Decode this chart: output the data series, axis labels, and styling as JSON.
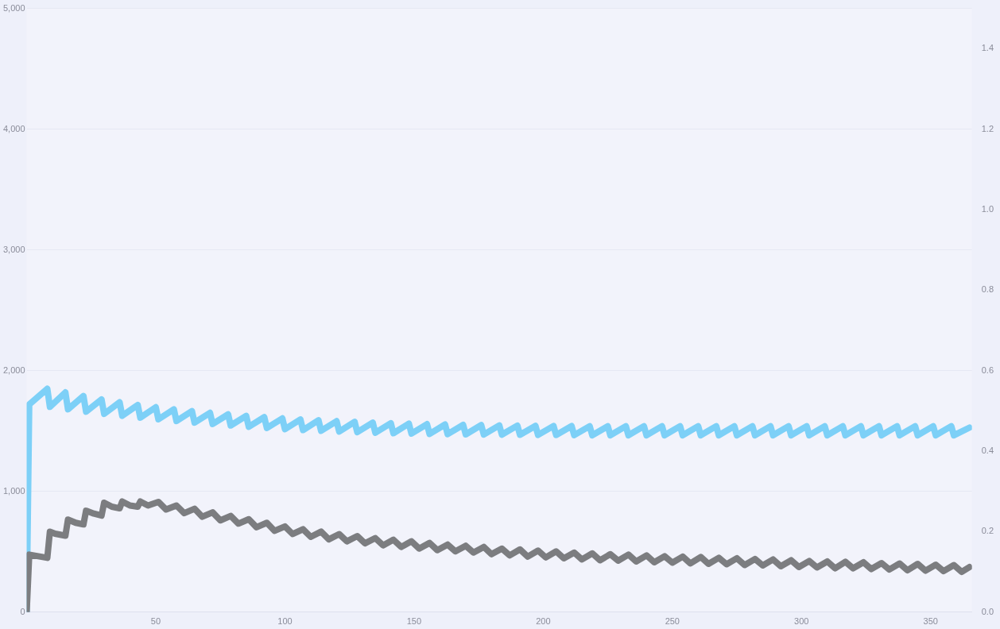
{
  "chart_data": {
    "type": "line",
    "xlim": [
      0,
      366
    ],
    "xticks": [
      50,
      100,
      150,
      200,
      250,
      300,
      350
    ],
    "ylim": [
      0,
      5000
    ],
    "yticks": [
      0,
      {
        "value": 1000,
        "label": "1,000"
      },
      {
        "value": 2000,
        "label": "2,000"
      },
      {
        "value": 3000,
        "label": "3,000"
      },
      {
        "value": 4000,
        "label": "4,000"
      },
      {
        "value": 5000,
        "label": "5,000"
      }
    ],
    "y2lim": [
      0,
      1.5
    ],
    "y2ticks": [
      {
        "value": 0,
        "label": "0.0"
      },
      0.2,
      0.4,
      0.6,
      0.8,
      {
        "value": 1,
        "label": "1.0"
      },
      1.2,
      1.4
    ],
    "grid": "y",
    "legend": false,
    "marker": "none",
    "line_style": "solid",
    "series": [
      {
        "color": "#7dd0f7",
        "x": [
          0,
          1,
          8,
          9,
          15,
          16,
          22,
          23,
          29,
          30,
          36,
          37,
          43,
          44,
          50,
          51,
          57,
          58,
          64,
          65,
          71,
          72,
          78,
          79,
          85,
          86,
          92,
          93,
          99,
          100,
          106,
          107,
          113,
          114,
          120,
          121,
          127,
          128,
          134,
          135,
          141,
          142,
          148,
          149,
          155,
          156,
          162,
          163,
          169,
          170,
          176,
          177,
          183,
          184,
          190,
          191,
          197,
          198,
          204,
          205,
          211,
          212,
          218,
          219,
          225,
          226,
          232,
          233,
          239,
          240,
          246,
          247,
          253,
          254,
          260,
          261,
          267,
          268,
          274,
          275,
          281,
          282,
          288,
          289,
          295,
          296,
          302,
          303,
          309,
          310,
          316,
          317,
          323,
          324,
          330,
          331,
          337,
          338,
          344,
          345,
          351,
          352,
          358,
          359,
          365
        ],
        "values": [
          0,
          1720,
          1850,
          1700,
          1820,
          1680,
          1790,
          1660,
          1762,
          1642,
          1738,
          1626,
          1716,
          1611,
          1697,
          1597,
          1680,
          1583,
          1665,
          1570,
          1651,
          1558,
          1638,
          1546,
          1626,
          1535,
          1615,
          1525,
          1605,
          1516,
          1596,
          1508,
          1589,
          1502,
          1582,
          1496,
          1576,
          1491,
          1570,
          1486,
          1565,
          1482,
          1561,
          1479,
          1557,
          1476,
          1554,
          1474,
          1551,
          1472,
          1549,
          1471,
          1547,
          1470,
          1545,
          1469,
          1543,
          1468,
          1542,
          1467,
          1541,
          1466,
          1540,
          1465,
          1540,
          1465,
          1540,
          1465,
          1540,
          1465,
          1540,
          1465,
          1540,
          1465,
          1540,
          1465,
          1540,
          1465,
          1540,
          1465,
          1540,
          1465,
          1540,
          1465,
          1540,
          1465,
          1540,
          1465,
          1540,
          1465,
          1540,
          1465,
          1540,
          1465,
          1540,
          1465,
          1540,
          1465,
          1540,
          1465,
          1540,
          1465,
          1540,
          1465,
          1528
        ]
      },
      {
        "color": "#7c7d80",
        "axis": "y2",
        "x": [
          0,
          1,
          8,
          9,
          11,
          15,
          16,
          19,
          22,
          23,
          26,
          29,
          30,
          33,
          36,
          37,
          40,
          43,
          44,
          47,
          51,
          54,
          58,
          61,
          65,
          68,
          72,
          75,
          79,
          82,
          86,
          89,
          93,
          96,
          100,
          103,
          107,
          110,
          114,
          117,
          121,
          124,
          128,
          131,
          135,
          138,
          142,
          145,
          149,
          152,
          156,
          159,
          163,
          166,
          170,
          173,
          177,
          180,
          184,
          187,
          191,
          194,
          198,
          201,
          205,
          208,
          212,
          215,
          219,
          222,
          226,
          229,
          233,
          236,
          240,
          243,
          247,
          250,
          254,
          257,
          261,
          264,
          268,
          271,
          275,
          278,
          282,
          285,
          289,
          292,
          296,
          299,
          303,
          306,
          310,
          313,
          317,
          320,
          324,
          327,
          331,
          334,
          338,
          341,
          345,
          348,
          352,
          355,
          359,
          362,
          365
        ],
        "values": [
          0,
          0.143,
          0.135,
          0.2,
          0.195,
          0.19,
          0.23,
          0.222,
          0.218,
          0.252,
          0.245,
          0.24,
          0.272,
          0.262,
          0.258,
          0.275,
          0.265,
          0.262,
          0.275,
          0.265,
          0.274,
          0.255,
          0.265,
          0.246,
          0.257,
          0.237,
          0.248,
          0.228,
          0.239,
          0.22,
          0.231,
          0.211,
          0.222,
          0.202,
          0.213,
          0.194,
          0.206,
          0.187,
          0.2,
          0.181,
          0.194,
          0.176,
          0.189,
          0.171,
          0.184,
          0.166,
          0.18,
          0.162,
          0.176,
          0.158,
          0.172,
          0.154,
          0.168,
          0.151,
          0.165,
          0.148,
          0.162,
          0.144,
          0.158,
          0.141,
          0.156,
          0.138,
          0.153,
          0.136,
          0.151,
          0.134,
          0.148,
          0.131,
          0.146,
          0.129,
          0.144,
          0.128,
          0.143,
          0.126,
          0.141,
          0.124,
          0.139,
          0.123,
          0.138,
          0.121,
          0.137,
          0.12,
          0.135,
          0.119,
          0.134,
          0.117,
          0.132,
          0.116,
          0.131,
          0.114,
          0.129,
          0.112,
          0.127,
          0.111,
          0.126,
          0.109,
          0.125,
          0.109,
          0.124,
          0.107,
          0.122,
          0.106,
          0.121,
          0.104,
          0.12,
          0.103,
          0.118,
          0.102,
          0.117,
          0.1,
          0.112
        ]
      }
    ]
  }
}
